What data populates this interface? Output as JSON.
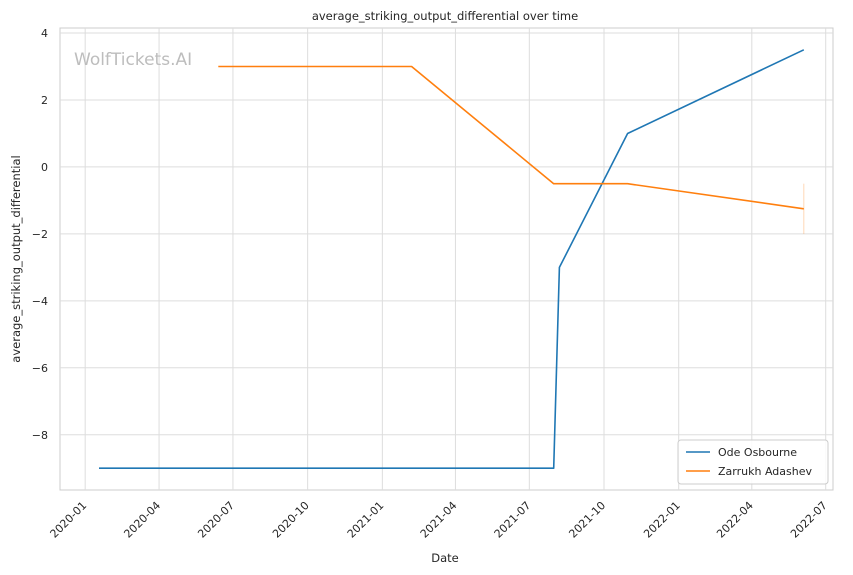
{
  "chart_data": {
    "type": "line",
    "title": "average_striking_output_differential over time",
    "xlabel": "Date",
    "ylabel": "average_striking_output_differential",
    "watermark": "WolfTickets.AI",
    "xlim": [
      "2019-12-01",
      "2022-07-10"
    ],
    "ylim": [
      -9.65,
      4.15
    ],
    "x_ticks": [
      "2020-01",
      "2020-04",
      "2020-07",
      "2020-10",
      "2021-01",
      "2021-04",
      "2021-07",
      "2021-10",
      "2022-01",
      "2022-04",
      "2022-07"
    ],
    "y_ticks": [
      4,
      2,
      0,
      -2,
      -4,
      -6,
      -8
    ],
    "y_tick_labels": [
      "4",
      "2",
      "0",
      "−2",
      "−4",
      "−6",
      "−8"
    ],
    "grid": true,
    "legend_position": "lower-right",
    "series": [
      {
        "name": "Ode Osbourne",
        "color": "#1f77b4",
        "points": [
          {
            "x": "2020-01-18",
            "y": -9.0
          },
          {
            "x": "2021-07-31",
            "y": -9.0
          },
          {
            "x": "2021-08-07",
            "y": -3.0
          },
          {
            "x": "2021-10-30",
            "y": 1.0
          },
          {
            "x": "2022-06-04",
            "y": 3.5
          }
        ]
      },
      {
        "name": "Zarrukh Adashev",
        "color": "#ff7f0e",
        "points": [
          {
            "x": "2020-06-13",
            "y": 3.0
          },
          {
            "x": "2021-02-06",
            "y": 3.0
          },
          {
            "x": "2021-07-31",
            "y": -0.5
          },
          {
            "x": "2021-10-30",
            "y": -0.5
          },
          {
            "x": "2022-06-04",
            "y": -1.25
          }
        ],
        "error_band": {
          "x": "2022-06-04",
          "low": -2.0,
          "high": -0.5
        }
      }
    ]
  }
}
